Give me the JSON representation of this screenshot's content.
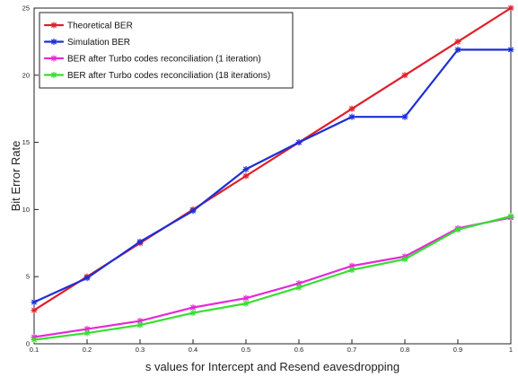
{
  "chart_data": {
    "type": "line",
    "title": "",
    "xlabel": "s values for Intercept and Resend eavesdropping",
    "ylabel": "Bit Error Rate",
    "xlim": [
      0.1,
      1.0
    ],
    "ylim": [
      0,
      25
    ],
    "x_ticks": [
      0.1,
      0.2,
      0.3,
      0.4,
      0.5,
      0.6,
      0.7,
      0.8,
      0.9,
      1.0
    ],
    "x_tick_labels": [
      "0.1",
      "0.2",
      "0.3",
      "0.4",
      "0.5",
      "0.6",
      "0.7",
      "0.8",
      "0.9",
      "1"
    ],
    "y_ticks": [
      0,
      5,
      10,
      15,
      20,
      25
    ],
    "y_tick_labels": [
      "0",
      "5",
      "10",
      "15",
      "20",
      "25"
    ],
    "grid": true,
    "legend_position": "top-left",
    "x": [
      0.1,
      0.2,
      0.3,
      0.4,
      0.5,
      0.6,
      0.7,
      0.8,
      0.9,
      1.0
    ],
    "series": [
      {
        "name": "Theoretical BER",
        "color": "#e01e2b",
        "values": [
          2.5,
          5.0,
          7.5,
          10.0,
          12.5,
          15.0,
          17.5,
          20.0,
          22.5,
          25.0
        ]
      },
      {
        "name": "Simulation BER",
        "color": "#1c2fd6",
        "values": [
          3.1,
          4.9,
          7.6,
          9.9,
          13.0,
          15.0,
          16.9,
          16.9,
          21.9,
          21.9
        ]
      },
      {
        "name": "BER after Turbo codes reconciliation (1 iteration)",
        "color": "#e52ad8",
        "values": [
          0.5,
          1.1,
          1.7,
          2.7,
          3.4,
          4.5,
          5.8,
          6.5,
          8.6,
          9.4
        ]
      },
      {
        "name": "BER after Turbo codes reconciliation (18 iterations)",
        "color": "#36df2f",
        "values": [
          0.3,
          0.8,
          1.4,
          2.3,
          3.0,
          4.2,
          5.5,
          6.3,
          8.5,
          9.5
        ]
      }
    ]
  }
}
